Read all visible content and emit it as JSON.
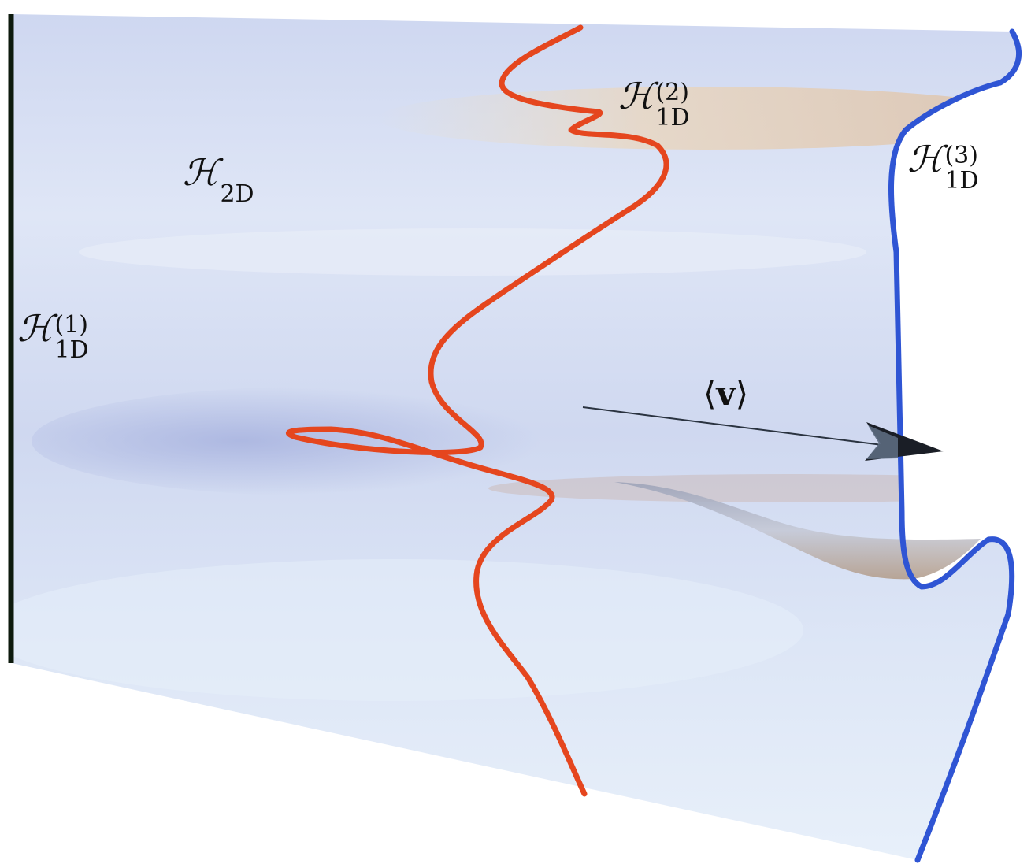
{
  "labels": {
    "h1d_1": {
      "symbol": "ℋ",
      "sup": "(1)",
      "sub": "1D"
    },
    "h1d_2": {
      "symbol": "ℋ",
      "sup": "(2)",
      "sub": "1D"
    },
    "h1d_3": {
      "symbol": "ℋ",
      "sup": "(3)",
      "sub": "1D"
    },
    "h2d": {
      "symbol": "ℋ",
      "sub": "2D"
    },
    "velocity": {
      "open": "⟨",
      "symbol": "v",
      "close": "⟩"
    }
  },
  "colors": {
    "surface_base": "#d4dcf2",
    "surface_light": "#e8eef8",
    "surface_dark_band": "#b8c2e6",
    "warm_band": "#e6d2bd",
    "interface_1": "#0d1a0d",
    "interface_2": "#e5461e",
    "interface_3": "#2f55d4",
    "arrow": "#2a3340"
  }
}
